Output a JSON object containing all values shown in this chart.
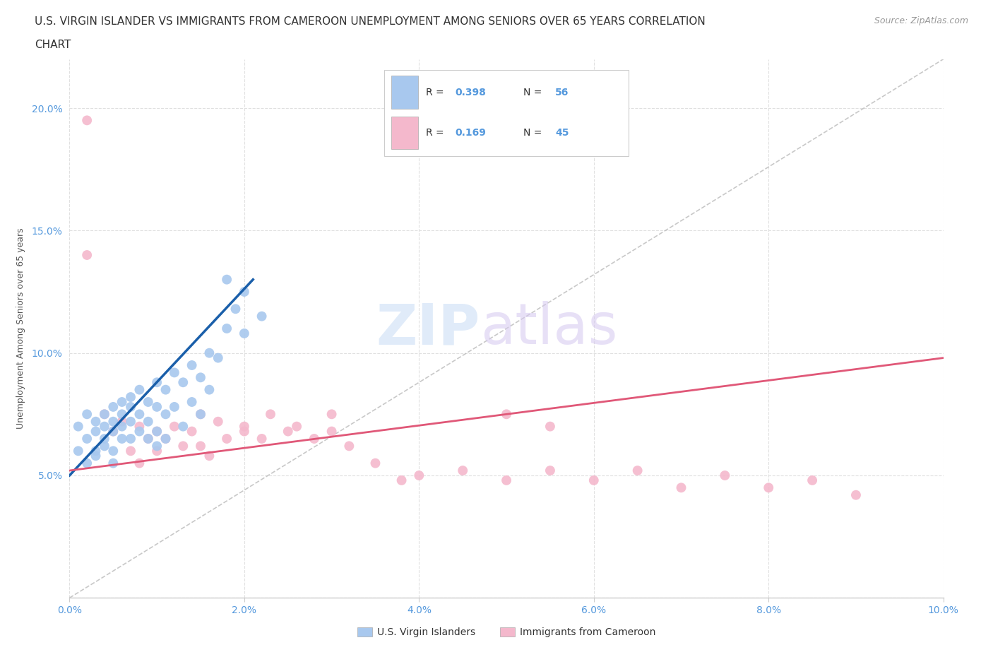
{
  "title_line1": "U.S. VIRGIN ISLANDER VS IMMIGRANTS FROM CAMEROON UNEMPLOYMENT AMONG SENIORS OVER 65 YEARS CORRELATION",
  "title_line2": "CHART",
  "source_text": "Source: ZipAtlas.com",
  "ylabel": "Unemployment Among Seniors over 65 years",
  "xlim": [
    0.0,
    0.1
  ],
  "ylim": [
    0.0,
    0.22
  ],
  "xticks": [
    0.0,
    0.02,
    0.04,
    0.06,
    0.08,
    0.1
  ],
  "yticks": [
    0.0,
    0.05,
    0.1,
    0.15,
    0.2
  ],
  "xtick_labels": [
    "0.0%",
    "2.0%",
    "4.0%",
    "6.0%",
    "8.0%",
    "10.0%"
  ],
  "ytick_labels": [
    "",
    "5.0%",
    "10.0%",
    "15.0%",
    "20.0%"
  ],
  "blue_R": 0.398,
  "blue_N": 56,
  "pink_R": 0.169,
  "pink_N": 45,
  "blue_color": "#a8c8ee",
  "pink_color": "#f4b8cc",
  "blue_line_color": "#1a5faa",
  "pink_line_color": "#e05878",
  "diag_color": "#bbbbbb",
  "legend_label_blue": "U.S. Virgin Islanders",
  "legend_label_pink": "Immigrants from Cameroon",
  "background_color": "#ffffff",
  "grid_color": "#e0e0e0",
  "tick_color": "#5599dd",
  "title_fontsize": 11,
  "axis_label_fontsize": 9,
  "tick_fontsize": 10,
  "blue_scatter_x": [
    0.001,
    0.001,
    0.002,
    0.002,
    0.002,
    0.003,
    0.003,
    0.003,
    0.003,
    0.004,
    0.004,
    0.004,
    0.004,
    0.005,
    0.005,
    0.005,
    0.005,
    0.005,
    0.006,
    0.006,
    0.006,
    0.006,
    0.007,
    0.007,
    0.007,
    0.007,
    0.008,
    0.008,
    0.008,
    0.009,
    0.009,
    0.009,
    0.01,
    0.01,
    0.01,
    0.01,
    0.011,
    0.011,
    0.011,
    0.012,
    0.012,
    0.013,
    0.013,
    0.014,
    0.014,
    0.015,
    0.015,
    0.016,
    0.016,
    0.017,
    0.018,
    0.019,
    0.02,
    0.022,
    0.018,
    0.02
  ],
  "blue_scatter_y": [
    0.06,
    0.07,
    0.065,
    0.075,
    0.055,
    0.068,
    0.072,
    0.06,
    0.058,
    0.07,
    0.065,
    0.075,
    0.062,
    0.078,
    0.068,
    0.072,
    0.06,
    0.055,
    0.075,
    0.08,
    0.065,
    0.07,
    0.082,
    0.072,
    0.065,
    0.078,
    0.085,
    0.075,
    0.068,
    0.08,
    0.072,
    0.065,
    0.088,
    0.078,
    0.068,
    0.062,
    0.085,
    0.075,
    0.065,
    0.092,
    0.078,
    0.088,
    0.07,
    0.095,
    0.08,
    0.09,
    0.075,
    0.1,
    0.085,
    0.098,
    0.11,
    0.118,
    0.125,
    0.115,
    0.13,
    0.108
  ],
  "pink_scatter_x": [
    0.002,
    0.002,
    0.004,
    0.005,
    0.006,
    0.007,
    0.008,
    0.008,
    0.009,
    0.01,
    0.01,
    0.011,
    0.012,
    0.013,
    0.014,
    0.015,
    0.016,
    0.017,
    0.018,
    0.02,
    0.022,
    0.023,
    0.025,
    0.026,
    0.028,
    0.03,
    0.032,
    0.035,
    0.038,
    0.04,
    0.045,
    0.05,
    0.055,
    0.06,
    0.065,
    0.07,
    0.075,
    0.08,
    0.085,
    0.09,
    0.05,
    0.055,
    0.02,
    0.015,
    0.03
  ],
  "pink_scatter_y": [
    0.195,
    0.14,
    0.075,
    0.068,
    0.072,
    0.06,
    0.07,
    0.055,
    0.065,
    0.06,
    0.068,
    0.065,
    0.07,
    0.062,
    0.068,
    0.075,
    0.058,
    0.072,
    0.065,
    0.07,
    0.065,
    0.075,
    0.068,
    0.07,
    0.065,
    0.068,
    0.062,
    0.055,
    0.048,
    0.05,
    0.052,
    0.048,
    0.052,
    0.048,
    0.052,
    0.045,
    0.05,
    0.045,
    0.048,
    0.042,
    0.075,
    0.07,
    0.068,
    0.062,
    0.075
  ],
  "blue_line_x0": 0.0,
  "blue_line_y0": 0.05,
  "blue_line_x1": 0.021,
  "blue_line_y1": 0.13,
  "pink_line_x0": 0.0,
  "pink_line_y0": 0.052,
  "pink_line_x1": 0.1,
  "pink_line_y1": 0.098
}
